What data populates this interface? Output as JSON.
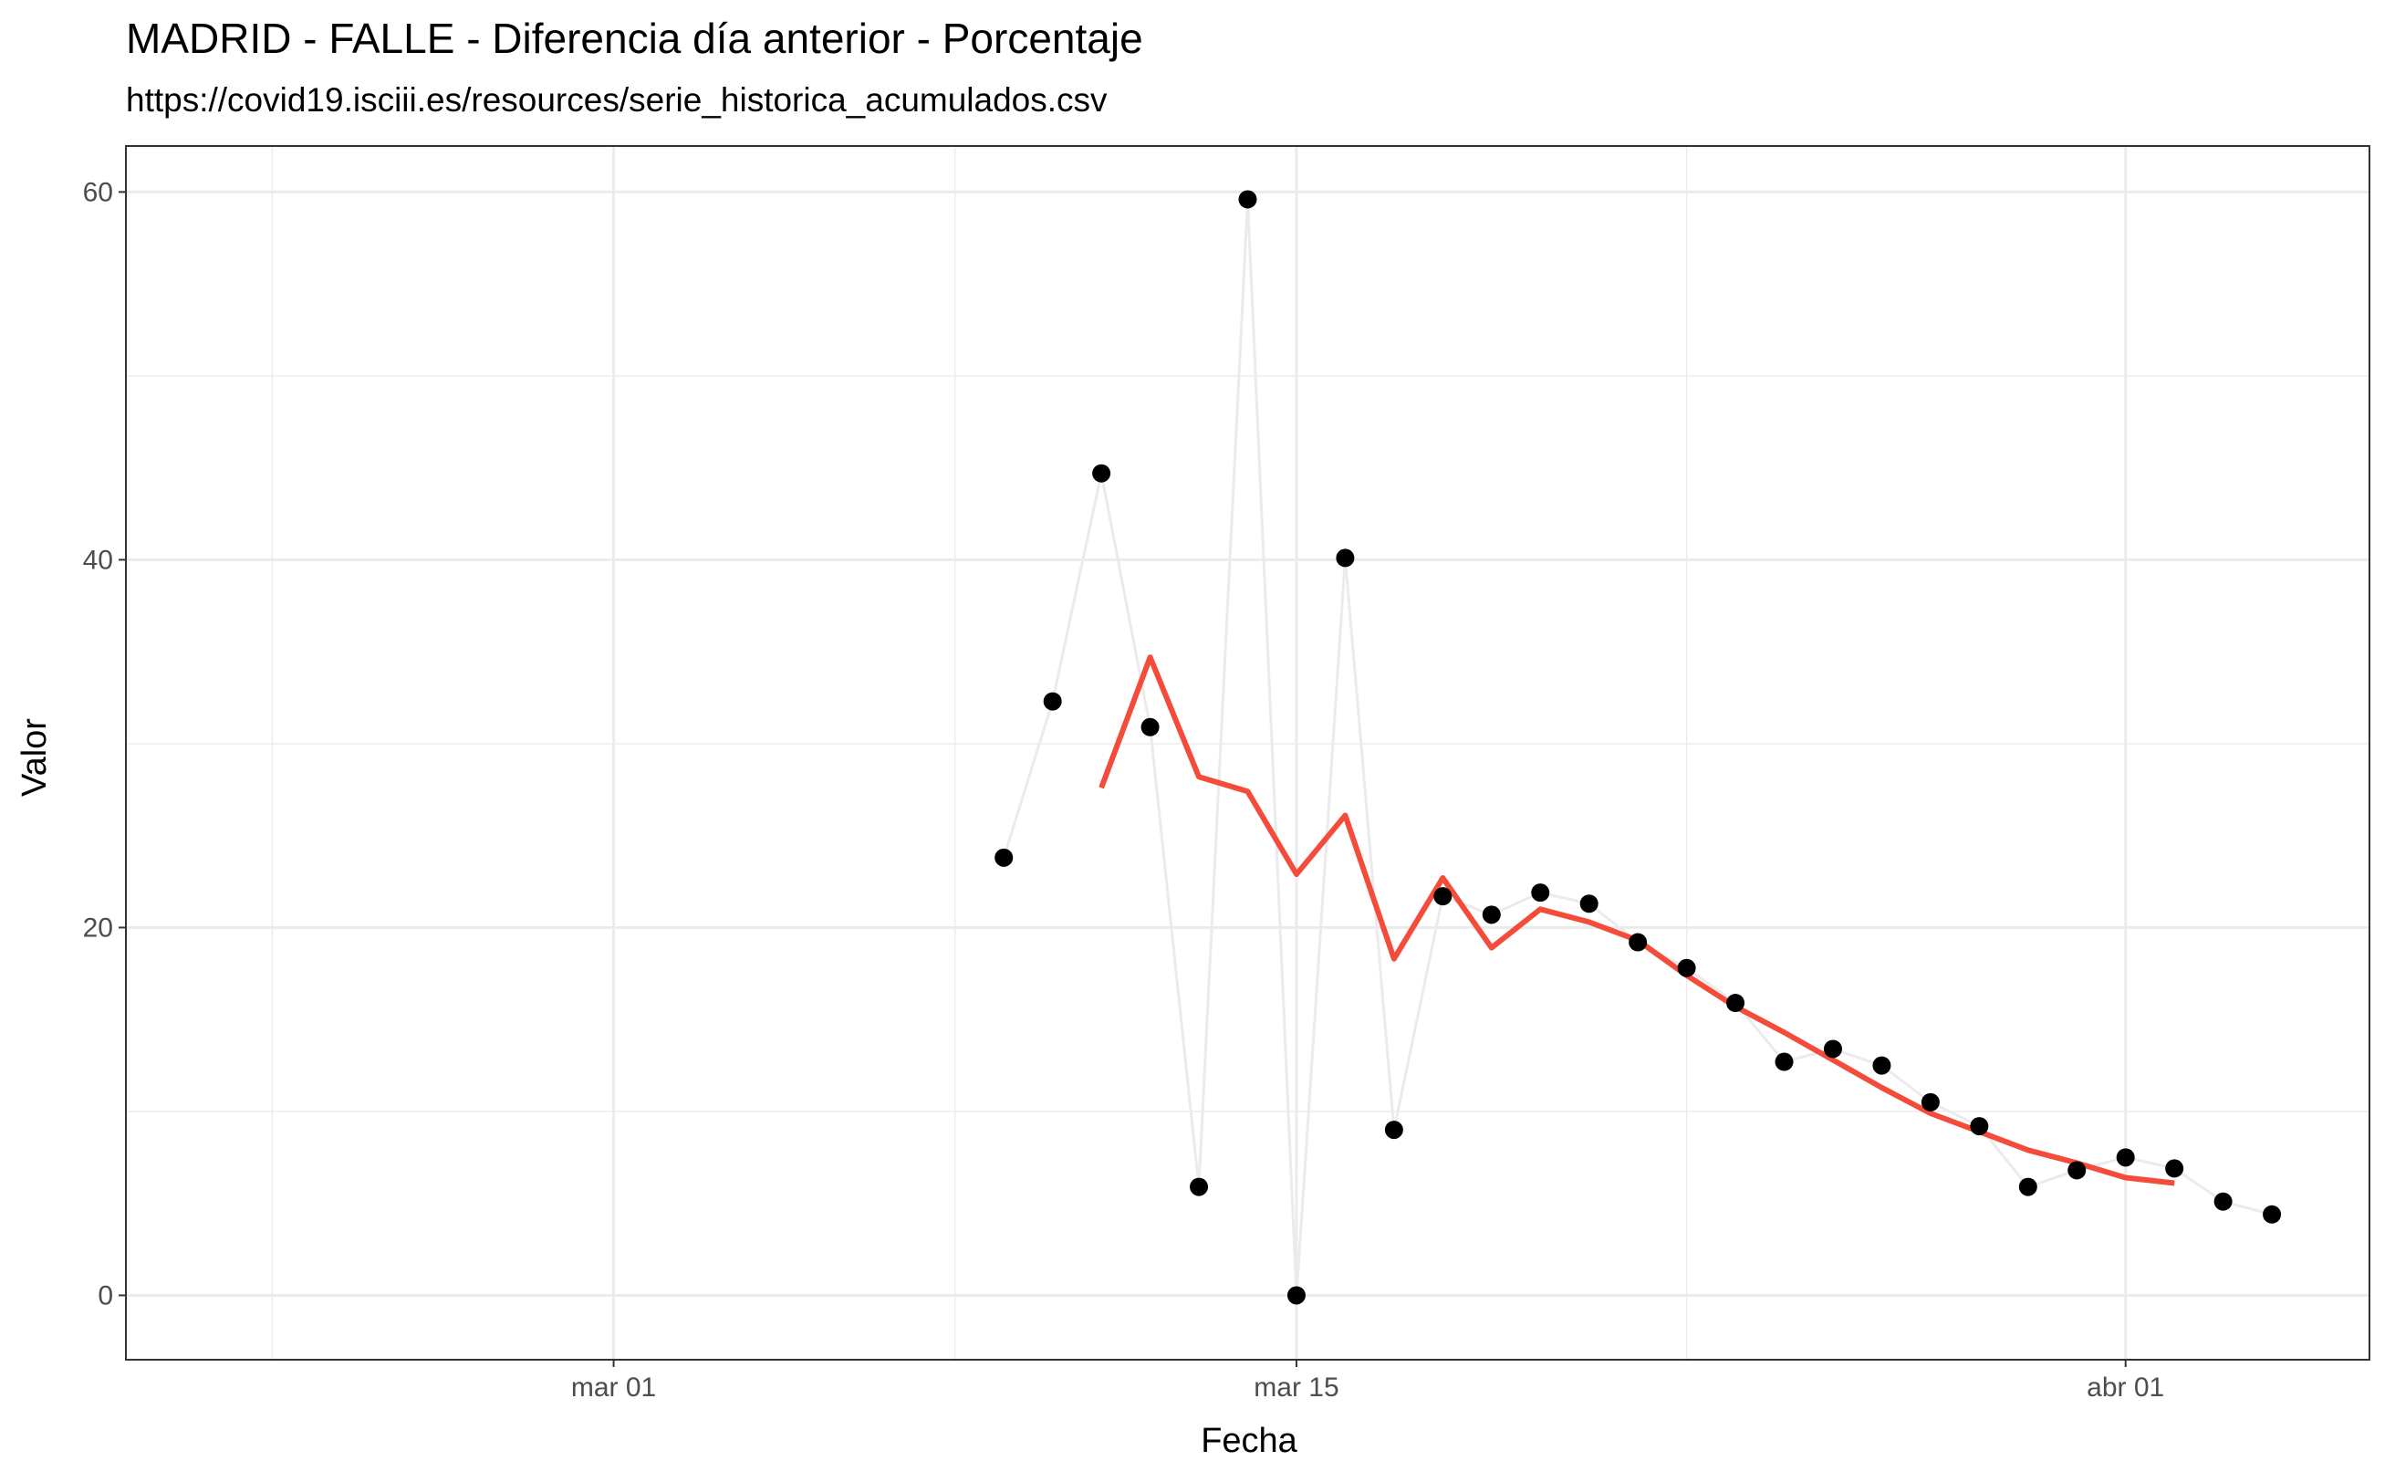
{
  "chart_data": {
    "type": "line",
    "title": "MADRID - FALLE - Diferencia día anterior - Porcentaje",
    "subtitle": "https://covid19.isciii.es/resources/serie_historica_acumulados.csv",
    "xlabel": "Fecha",
    "ylabel": "Valor",
    "xlim": [
      "2020-02-20",
      "2020-04-06"
    ],
    "ylim": [
      -3.5,
      62.5
    ],
    "x_ticks": [
      "2020-03-01",
      "2020-03-15",
      "2020-04-01"
    ],
    "x_tick_labels": [
      "mar 01",
      "mar 15",
      "abr 01"
    ],
    "x_minor_ticks": [
      "2020-02-23",
      "2020-03-08",
      "2020-03-23"
    ],
    "y_ticks": [
      0,
      20,
      40,
      60
    ],
    "y_tick_labels": [
      "0",
      "20",
      "40",
      "60"
    ],
    "y_minor_ticks": [
      10,
      30,
      50
    ],
    "grid": true,
    "legend": "none",
    "series": [
      {
        "style": "points-and-thin-line",
        "color": "#000000",
        "line_color": "#ebebeb",
        "points": [
          {
            "x": "2020-03-09",
            "y": 23.8
          },
          {
            "x": "2020-03-10",
            "y": 32.3
          },
          {
            "x": "2020-03-11",
            "y": 44.7
          },
          {
            "x": "2020-03-12",
            "y": 30.9
          },
          {
            "x": "2020-03-13",
            "y": 5.9
          },
          {
            "x": "2020-03-14",
            "y": 59.6
          },
          {
            "x": "2020-03-15",
            "y": 0.0
          },
          {
            "x": "2020-03-16",
            "y": 40.1
          },
          {
            "x": "2020-03-17",
            "y": 9.0
          },
          {
            "x": "2020-03-18",
            "y": 21.7
          },
          {
            "x": "2020-03-19",
            "y": 20.7
          },
          {
            "x": "2020-03-20",
            "y": 21.9
          },
          {
            "x": "2020-03-21",
            "y": 21.3
          },
          {
            "x": "2020-03-22",
            "y": 19.2
          },
          {
            "x": "2020-03-23",
            "y": 17.8
          },
          {
            "x": "2020-03-24",
            "y": 15.9
          },
          {
            "x": "2020-03-25",
            "y": 12.7
          },
          {
            "x": "2020-03-26",
            "y": 13.4
          },
          {
            "x": "2020-03-27",
            "y": 12.5
          },
          {
            "x": "2020-03-28",
            "y": 10.5
          },
          {
            "x": "2020-03-29",
            "y": 9.2
          },
          {
            "x": "2020-03-30",
            "y": 5.9
          },
          {
            "x": "2020-03-31",
            "y": 6.8
          },
          {
            "x": "2020-04-01",
            "y": 7.5
          },
          {
            "x": "2020-04-02",
            "y": 6.9
          },
          {
            "x": "2020-04-03",
            "y": 5.1
          },
          {
            "x": "2020-04-04",
            "y": 4.4
          }
        ]
      },
      {
        "style": "smoothed-line",
        "color": "#f44b3a",
        "points": [
          {
            "x": "2020-03-11",
            "y": 27.6
          },
          {
            "x": "2020-03-12",
            "y": 34.7
          },
          {
            "x": "2020-03-13",
            "y": 28.2
          },
          {
            "x": "2020-03-14",
            "y": 27.4
          },
          {
            "x": "2020-03-15",
            "y": 22.9
          },
          {
            "x": "2020-03-16",
            "y": 26.1
          },
          {
            "x": "2020-03-17",
            "y": 18.3
          },
          {
            "x": "2020-03-18",
            "y": 22.7
          },
          {
            "x": "2020-03-19",
            "y": 18.9
          },
          {
            "x": "2020-03-20",
            "y": 21.0
          },
          {
            "x": "2020-03-21",
            "y": 20.3
          },
          {
            "x": "2020-03-22",
            "y": 19.3
          },
          {
            "x": "2020-03-23",
            "y": 17.4
          },
          {
            "x": "2020-03-24",
            "y": 15.7
          },
          {
            "x": "2020-03-25",
            "y": 14.3
          },
          {
            "x": "2020-03-26",
            "y": 12.8
          },
          {
            "x": "2020-03-27",
            "y": 11.3
          },
          {
            "x": "2020-03-28",
            "y": 9.9
          },
          {
            "x": "2020-03-29",
            "y": 8.9
          },
          {
            "x": "2020-03-30",
            "y": 7.9
          },
          {
            "x": "2020-03-31",
            "y": 7.2
          },
          {
            "x": "2020-04-01",
            "y": 6.4
          },
          {
            "x": "2020-04-02",
            "y": 6.1
          }
        ]
      }
    ]
  }
}
